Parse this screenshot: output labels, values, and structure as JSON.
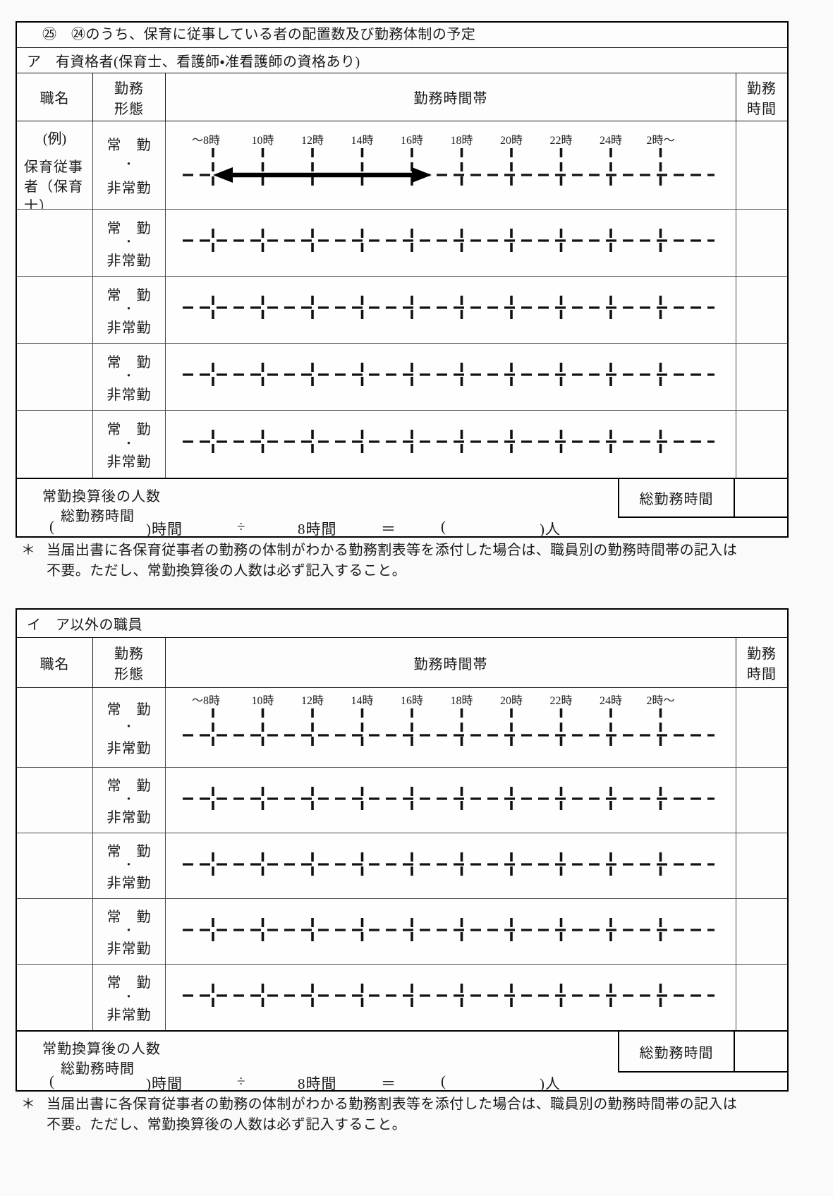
{
  "document": {
    "section_a": {
      "title": "㉕　㉔のうち、保育に従事している者の配置数及び勤務体制の予定",
      "category_label": "ア　有資格者(保育士、看護師・准看護師の資格あり)",
      "example_role_line1": "(例)",
      "example_role_line2": "保育従事者（保育士）",
      "example_arrow": {
        "from_label": "～8時",
        "to_hour_approx": "17時"
      }
    },
    "section_b": {
      "category_label": "イ　ア以外の職員"
    },
    "table": {
      "col_role": "職名",
      "col_style_l1": "勤務",
      "col_style_l2": "形態",
      "col_timeband": "勤務時間帯",
      "col_hours_l1": "勤務",
      "col_hours_l2": "時間",
      "style_line1": "常　勤",
      "style_line2": "・",
      "style_line3": "非常勤",
      "time_labels": [
        "～8時",
        "10時",
        "12時",
        "14時",
        "16時",
        "18時",
        "20時",
        "22時",
        "24時",
        "2時～"
      ],
      "footer_line1": "常勤換算後の人数",
      "footer_line2": "総勤務時間",
      "total_hours_box": "総勤務時間",
      "formula": {
        "p1": "(",
        "p2": ")時間",
        "p3": "÷",
        "p4": "8時間",
        "p5": "＝",
        "p6": "(",
        "p7": ")人"
      }
    },
    "note": {
      "marker": "＊",
      "line1": "当届出書に各保育従事者の勤務の体制がわかる勤務割表等を添付した場合は、職員別の勤務時間帯の記入は",
      "line2": "不要。ただし、常勤換算後の人数は必ず記入すること。"
    }
  },
  "colors": {
    "ink": "#111111",
    "page_bg": "#fafafa",
    "border": "#000000"
  }
}
